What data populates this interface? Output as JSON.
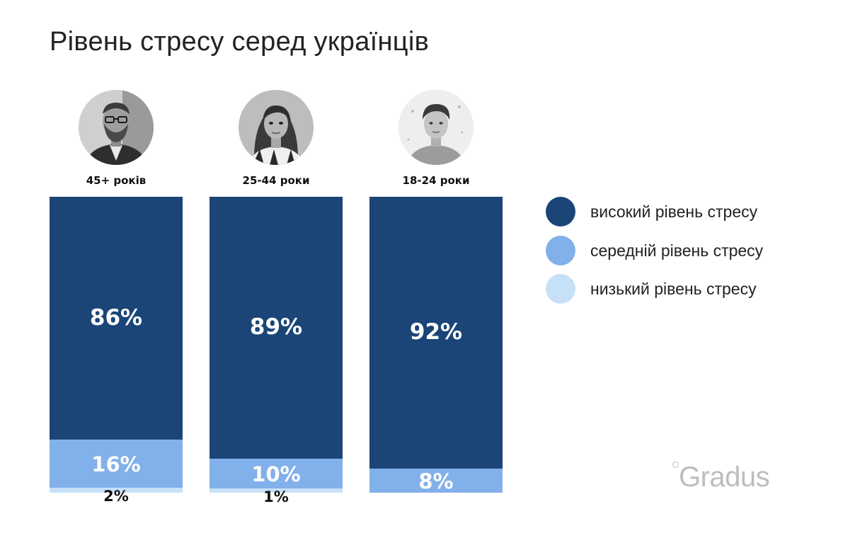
{
  "title": "Рівень стресу серед українців",
  "legend": [
    {
      "label": "високий рівень стресу",
      "color": "#1b4577"
    },
    {
      "label": "середній рівень стресу",
      "color": "#82b0ea"
    },
    {
      "label": "низький рівень стресу",
      "color": "#c6e0f7"
    }
  ],
  "logo": {
    "text": "Gradus"
  },
  "chart_data": {
    "type": "bar",
    "stacked": true,
    "title": "Рівень стресу серед українців",
    "categories": [
      "45+ років",
      "25-44 роки",
      "18-24 роки"
    ],
    "series": [
      {
        "name": "високий рівень стресу",
        "values": [
          86,
          89,
          92
        ],
        "labels": [
          "86%",
          "89%",
          "92%"
        ],
        "color": "#1b4577"
      },
      {
        "name": "середній рівень стресу",
        "values": [
          16,
          10,
          8
        ],
        "labels": [
          "16%",
          "10%",
          "8%"
        ],
        "color": "#82b0ea"
      },
      {
        "name": "низький рівень стресу",
        "values": [
          2,
          1,
          0
        ],
        "labels": [
          "2%",
          "1%",
          ""
        ],
        "color": "#c6e0f7"
      }
    ],
    "legend_position": "right",
    "grid": false
  }
}
